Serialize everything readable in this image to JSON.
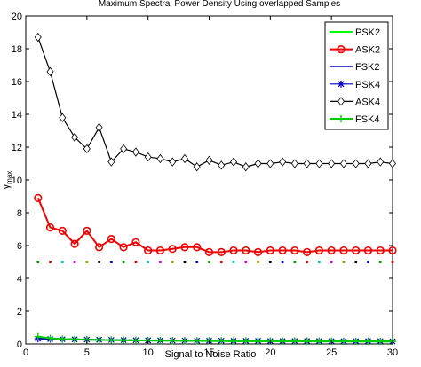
{
  "chart_data": {
    "type": "line",
    "title": "Maximum Spectral Power Density Using overlapped Samples",
    "xlabel": "Signal to Noise Ratio",
    "ylabel_main": "γ",
    "ylabel_sub": "max",
    "xlim": [
      0,
      30
    ],
    "ylim": [
      0,
      20
    ],
    "xticks": [
      0,
      5,
      10,
      15,
      20,
      25,
      30
    ],
    "yticks": [
      0,
      2,
      4,
      6,
      8,
      10,
      12,
      14,
      16,
      18,
      20
    ],
    "grid": false,
    "legend_position": "top-right",
    "x": [
      1,
      2,
      3,
      4,
      5,
      6,
      7,
      8,
      9,
      10,
      11,
      12,
      13,
      14,
      15,
      16,
      17,
      18,
      19,
      20,
      21,
      22,
      23,
      24,
      25,
      26,
      27,
      28,
      29,
      30
    ],
    "series": [
      {
        "name": "PSK2",
        "color": "#00ff00",
        "marker": "none",
        "values": [
          0.3,
          0.3,
          0.3,
          0.28,
          0.27,
          0.25,
          0.24,
          0.23,
          0.22,
          0.21,
          0.2,
          0.2,
          0.19,
          0.19,
          0.18,
          0.18,
          0.17,
          0.17,
          0.17,
          0.16,
          0.16,
          0.16,
          0.16,
          0.15,
          0.15,
          0.15,
          0.15,
          0.15,
          0.14,
          0.14
        ]
      },
      {
        "name": "ASK2",
        "color": "#ee0000",
        "marker": "circle",
        "values": [
          8.9,
          7.1,
          6.9,
          6.1,
          6.9,
          5.9,
          6.4,
          5.9,
          6.2,
          5.7,
          5.7,
          5.8,
          5.9,
          5.9,
          5.6,
          5.6,
          5.7,
          5.7,
          5.6,
          5.7,
          5.7,
          5.7,
          5.6,
          5.7,
          5.7,
          5.7,
          5.7,
          5.7,
          5.7,
          5.7
        ]
      },
      {
        "name": "FSK2",
        "color": "#0000cc",
        "marker": "none",
        "values": [
          0.35,
          0.33,
          0.31,
          0.3,
          0.28,
          0.27,
          0.26,
          0.25,
          0.24,
          0.23,
          0.23,
          0.22,
          0.22,
          0.21,
          0.21,
          0.2,
          0.2,
          0.2,
          0.19,
          0.19,
          0.19,
          0.19,
          0.18,
          0.18,
          0.18,
          0.18,
          0.18,
          0.17,
          0.17,
          0.17
        ]
      },
      {
        "name": "PSK4",
        "color": "#0000cc",
        "marker": "star",
        "values": [
          0.32,
          0.3,
          0.29,
          0.28,
          0.27,
          0.26,
          0.25,
          0.24,
          0.23,
          0.22,
          0.22,
          0.21,
          0.21,
          0.2,
          0.2,
          0.2,
          0.19,
          0.19,
          0.19,
          0.18,
          0.18,
          0.18,
          0.18,
          0.18,
          0.17,
          0.17,
          0.17,
          0.17,
          0.17,
          0.16
        ]
      },
      {
        "name": "ASK4",
        "color": "#000000",
        "marker": "diamond",
        "values": [
          18.7,
          16.6,
          13.8,
          12.6,
          11.9,
          13.2,
          11.1,
          11.9,
          11.7,
          11.4,
          11.3,
          11.1,
          11.3,
          10.8,
          11.2,
          10.9,
          11.1,
          10.8,
          11.0,
          11.0,
          11.1,
          11.0,
          11.0,
          11.0,
          11.0,
          11.0,
          11.0,
          11.0,
          11.1,
          11.0
        ]
      },
      {
        "name": "FSK4",
        "color": "#00cc00",
        "marker": "plus",
        "values": [
          0.45,
          0.35,
          0.3,
          0.28,
          0.26,
          0.25,
          0.24,
          0.23,
          0.22,
          0.21,
          0.21,
          0.2,
          0.2,
          0.19,
          0.19,
          0.19,
          0.18,
          0.18,
          0.18,
          0.18,
          0.17,
          0.17,
          0.17,
          0.17,
          0.17,
          0.16,
          0.16,
          0.16,
          0.16,
          0.16
        ]
      }
    ],
    "dotted_reference": {
      "y": 5.0,
      "x": [
        1,
        2,
        3,
        4,
        5,
        6,
        7,
        8,
        9,
        10,
        11,
        12,
        13,
        14,
        15,
        16,
        17,
        18,
        19,
        20,
        21,
        22,
        23,
        24,
        25,
        26,
        27,
        28,
        29,
        30
      ],
      "colors": [
        "#009900",
        "#cc0000",
        "#00bbbb",
        "#cc00cc",
        "#999900",
        "#000000",
        "#0000cc",
        "#009900",
        "#cc0000",
        "#00bbbb",
        "#cc00cc",
        "#999900",
        "#000000",
        "#0000cc",
        "#009900",
        "#cc0000",
        "#00bbbb",
        "#cc00cc",
        "#999900",
        "#000000",
        "#0000cc",
        "#009900",
        "#cc0000",
        "#00bbbb",
        "#cc00cc",
        "#999900",
        "#000000",
        "#0000cc",
        "#009900",
        "#cc0000"
      ]
    }
  }
}
